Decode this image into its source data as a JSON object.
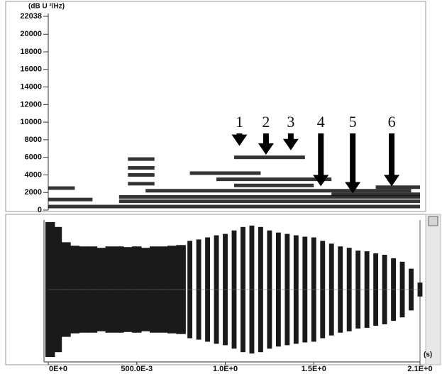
{
  "chart_data": [
    {
      "type": "spectrogram",
      "y_label": "(dB U ²/Hz)",
      "xlim": [
        0,
        2.1
      ],
      "ylim": [
        0,
        22038
      ],
      "yticks": [
        0,
        2000,
        4000,
        6000,
        8000,
        10000,
        12000,
        14000,
        16000,
        18000,
        20000,
        22038
      ],
      "color": "#111111",
      "bands": [
        {
          "start": 0,
          "end": 2.1,
          "freq": 400
        },
        {
          "start": 0,
          "end": 0.25,
          "freq": 1200
        },
        {
          "start": 0,
          "end": 0.15,
          "freq": 2500
        },
        {
          "start": 0.4,
          "end": 2.1,
          "freq": 1000
        },
        {
          "start": 0.4,
          "end": 2.1,
          "freq": 1500
        },
        {
          "start": 0.55,
          "end": 2.05,
          "freq": 2200
        },
        {
          "start": 0.45,
          "end": 0.6,
          "freq": 3000
        },
        {
          "start": 0.45,
          "end": 0.6,
          "freq": 4000
        },
        {
          "start": 0.45,
          "end": 0.6,
          "freq": 4800
        },
        {
          "start": 0.45,
          "end": 0.6,
          "freq": 5800
        },
        {
          "start": 0.8,
          "end": 1.2,
          "freq": 4200
        },
        {
          "start": 0.95,
          "end": 1.6,
          "freq": 3500
        },
        {
          "start": 1.05,
          "end": 1.5,
          "freq": 2800
        },
        {
          "start": 1.05,
          "end": 1.45,
          "freq": 6000
        },
        {
          "start": 1.6,
          "end": 2.1,
          "freq": 1800
        },
        {
          "start": 1.85,
          "end": 2.1,
          "freq": 2600
        }
      ],
      "annotations": [
        {
          "label": "1",
          "x": 1.08,
          "y": 7300
        },
        {
          "label": "2",
          "x": 1.23,
          "y": 6300
        },
        {
          "label": "3",
          "x": 1.37,
          "y": 6800
        },
        {
          "label": "4",
          "x": 1.54,
          "y": 2700
        },
        {
          "label": "5",
          "x": 1.72,
          "y": 1900
        },
        {
          "label": "6",
          "x": 1.94,
          "y": 2700
        }
      ]
    },
    {
      "type": "waveform",
      "x_label": "(s)",
      "xlim": [
        0,
        2.1
      ],
      "ylim": [
        -1,
        1
      ],
      "xticks": [
        {
          "value": 0,
          "label": "0E+0"
        },
        {
          "value": 0.5,
          "label": "500.0E-3"
        },
        {
          "value": 1.0,
          "label": "1.0E+0"
        },
        {
          "value": 1.5,
          "label": "1.5E+0"
        },
        {
          "value": 2.1,
          "label": "2.1E+0"
        }
      ],
      "color": "#1a1a1a",
      "x": [
        0,
        0.05,
        0.1,
        0.15,
        0.2,
        0.25,
        0.3,
        0.35,
        0.4,
        0.45,
        0.5,
        0.55,
        0.6,
        0.65,
        0.7,
        0.75,
        0.8,
        0.85,
        0.9,
        0.95,
        1.0,
        1.05,
        1.1,
        1.15,
        1.2,
        1.25,
        1.3,
        1.35,
        1.4,
        1.45,
        1.5,
        1.55,
        1.6,
        1.65,
        1.7,
        1.75,
        1.8,
        1.85,
        1.9,
        1.95,
        2.0,
        2.05,
        2.1
      ],
      "values": [
        0.97,
        0.9,
        0.68,
        0.63,
        0.62,
        0.62,
        0.6,
        0.62,
        0.62,
        0.61,
        0.62,
        0.6,
        0.62,
        0.62,
        0.63,
        0.64,
        0.7,
        0.72,
        0.75,
        0.78,
        0.8,
        0.85,
        0.9,
        0.92,
        0.9,
        0.85,
        0.82,
        0.8,
        0.78,
        0.76,
        0.75,
        0.7,
        0.66,
        0.62,
        0.6,
        0.56,
        0.55,
        0.52,
        0.5,
        0.45,
        0.4,
        0.3,
        0.1
      ]
    }
  ]
}
